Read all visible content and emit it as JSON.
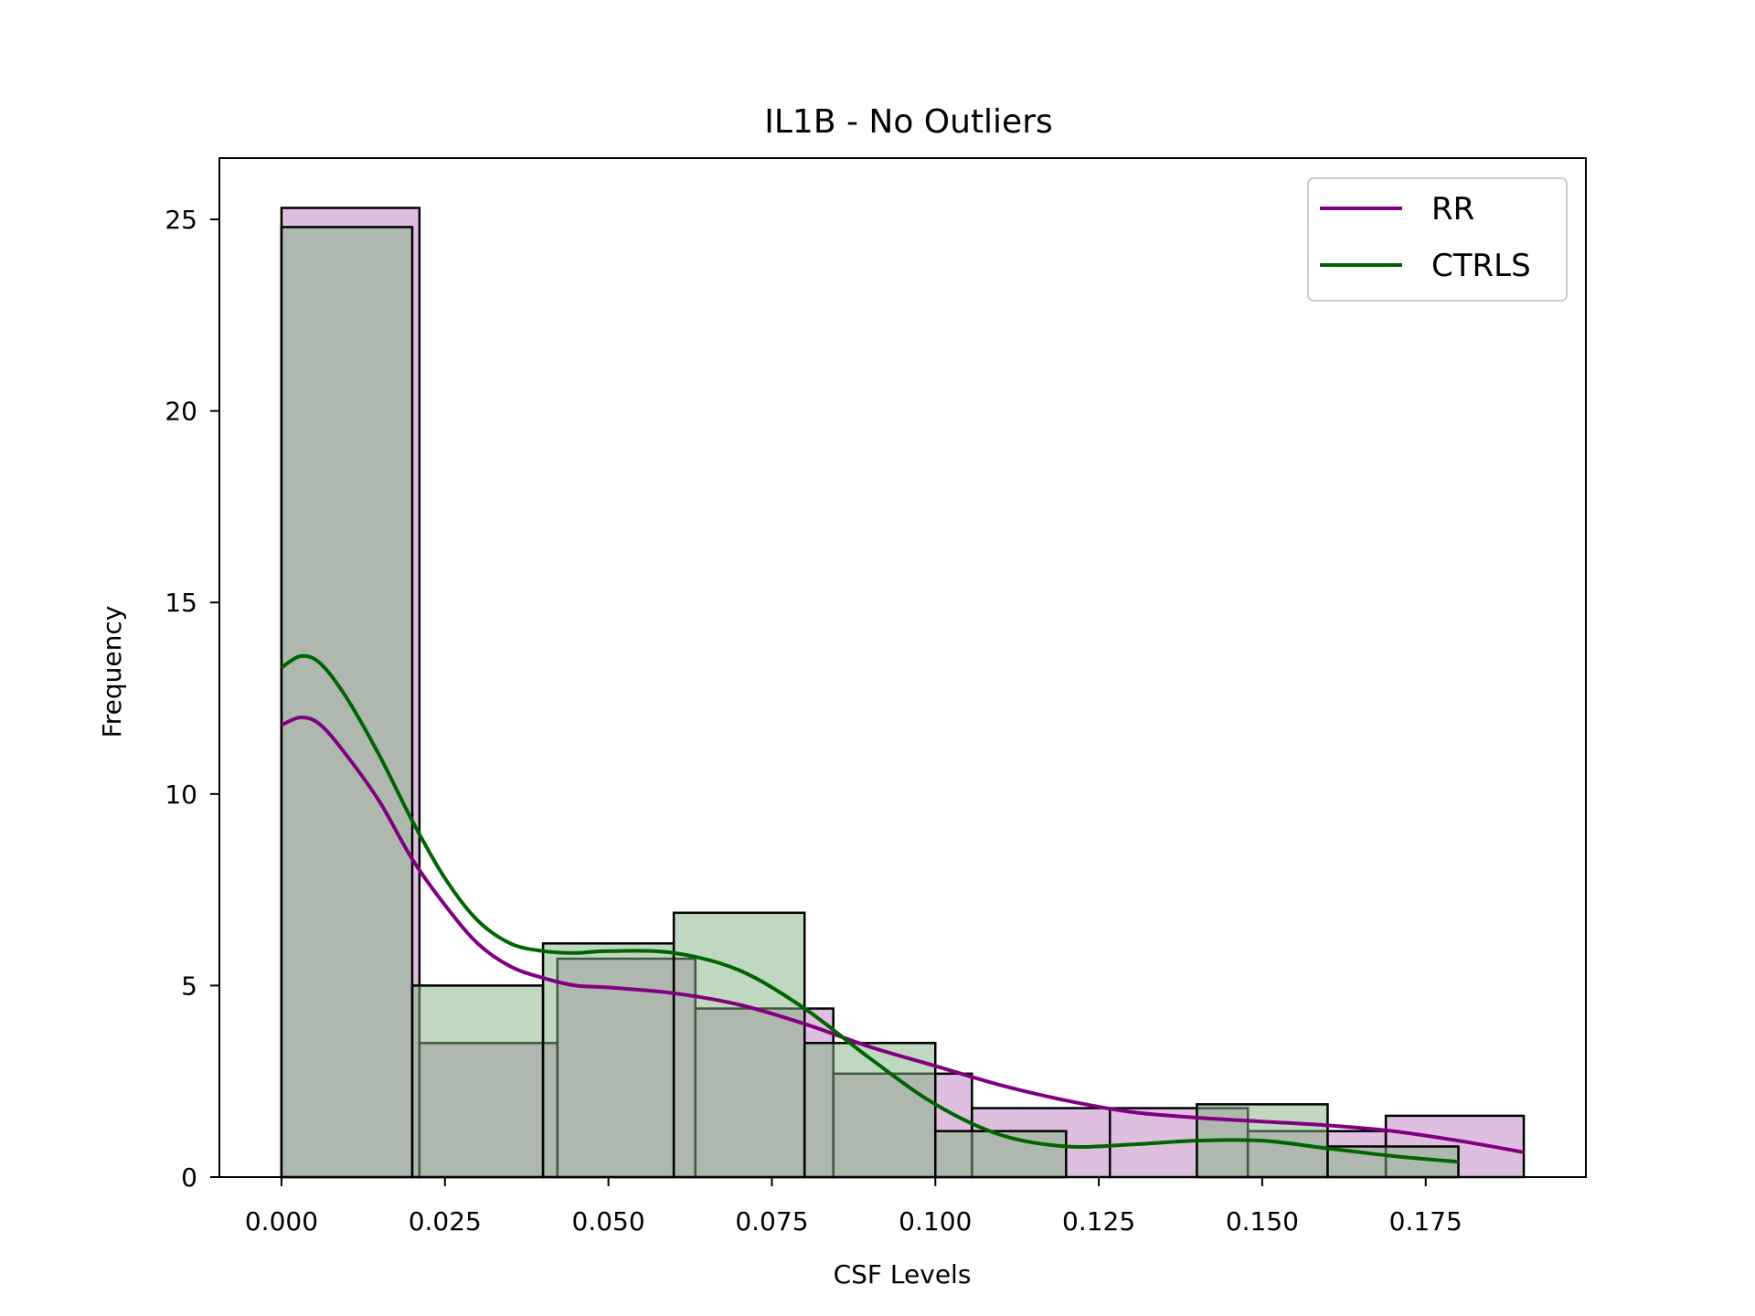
{
  "chart_data": {
    "type": "bar",
    "title": "IL1B - No Outliers",
    "xlabel": "CSF Levels",
    "ylabel": "Frequency",
    "xlim": [
      -0.0095,
      0.1995
    ],
    "ylim": [
      0,
      26.6
    ],
    "grid": false,
    "legend_placement": "top-right",
    "x_ticks": [
      {
        "value": 0.0,
        "label": "0.000"
      },
      {
        "value": 0.025,
        "label": "0.025"
      },
      {
        "value": 0.05,
        "label": "0.050"
      },
      {
        "value": 0.075,
        "label": "0.075"
      },
      {
        "value": 0.1,
        "label": "0.100"
      },
      {
        "value": 0.125,
        "label": "0.125"
      },
      {
        "value": 0.15,
        "label": "0.150"
      },
      {
        "value": 0.175,
        "label": "0.175"
      }
    ],
    "y_ticks": [
      {
        "value": 0,
        "label": "0"
      },
      {
        "value": 5,
        "label": "5"
      },
      {
        "value": 10,
        "label": "10"
      },
      {
        "value": 15,
        "label": "15"
      },
      {
        "value": 20,
        "label": "20"
      },
      {
        "value": 25,
        "label": "25"
      }
    ],
    "series": [
      {
        "name": "RR",
        "color": "#800080",
        "fill": "#bf7fbf",
        "bin_edges": [
          0.0,
          0.0211,
          0.0422,
          0.0633,
          0.0844,
          0.1056,
          0.1267,
          0.1478,
          0.1689,
          0.19
        ],
        "counts": [
          25.3,
          3.5,
          5.7,
          4.4,
          2.7,
          1.8,
          1.8,
          1.2,
          1.6
        ],
        "kde": {
          "x": [
            0.0,
            0.003,
            0.006,
            0.01,
            0.015,
            0.02,
            0.025,
            0.03,
            0.035,
            0.04,
            0.045,
            0.05,
            0.06,
            0.07,
            0.08,
            0.09,
            0.1,
            0.11,
            0.12,
            0.13,
            0.14,
            0.15,
            0.16,
            0.17,
            0.18,
            0.19
          ],
          "y": [
            11.8,
            12.0,
            11.8,
            11.0,
            9.8,
            8.3,
            7.1,
            6.1,
            5.5,
            5.2,
            5.0,
            4.95,
            4.8,
            4.5,
            4.0,
            3.4,
            2.9,
            2.4,
            2.0,
            1.7,
            1.55,
            1.45,
            1.35,
            1.2,
            0.95,
            0.65
          ]
        }
      },
      {
        "name": "CTRLS",
        "color": "#006400",
        "fill": "#7fb27f",
        "bin_edges": [
          0.0,
          0.02,
          0.04,
          0.06,
          0.08,
          0.1,
          0.12,
          0.14,
          0.16,
          0.18
        ],
        "counts": [
          24.8,
          5.0,
          6.1,
          6.9,
          3.5,
          1.2,
          0.0,
          1.9,
          0.8
        ],
        "kde": {
          "x": [
            0.0,
            0.003,
            0.006,
            0.01,
            0.015,
            0.02,
            0.025,
            0.03,
            0.035,
            0.04,
            0.045,
            0.05,
            0.06,
            0.07,
            0.08,
            0.09,
            0.1,
            0.11,
            0.12,
            0.13,
            0.14,
            0.15,
            0.16,
            0.17,
            0.18
          ],
          "y": [
            13.3,
            13.6,
            13.4,
            12.5,
            11.0,
            9.3,
            7.8,
            6.7,
            6.1,
            5.9,
            5.85,
            5.9,
            5.85,
            5.4,
            4.4,
            3.1,
            1.9,
            1.1,
            0.8,
            0.85,
            0.95,
            0.95,
            0.75,
            0.55,
            0.4
          ]
        }
      }
    ]
  }
}
